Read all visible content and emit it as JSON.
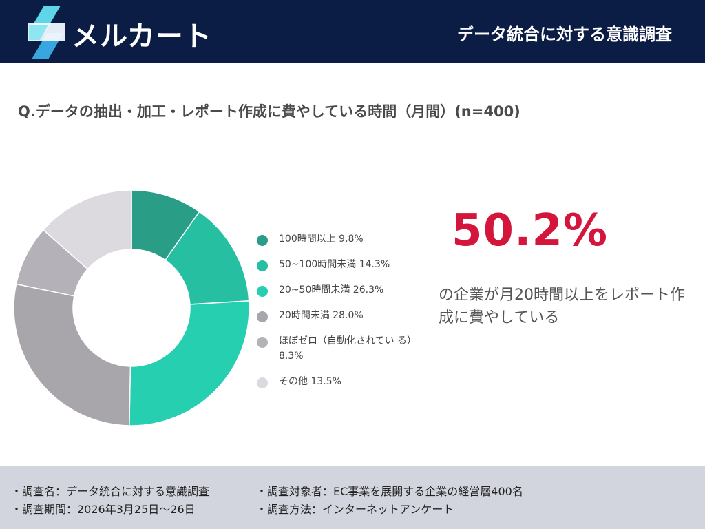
{
  "header": {
    "brand": "メルカート",
    "title": "データ統合に対する意識調査"
  },
  "question": "Q.データの抽出・加工・レポート作成に費やしている時間（月間）(n=400)",
  "chart_data": {
    "type": "pie",
    "variant": "donut",
    "title": "",
    "categories": [
      "100時間以上",
      "50~100時間未満",
      "20~50時間未満",
      "20時間未満",
      "ほぼゼロ（自動化されている）",
      "その他"
    ],
    "values": [
      9.8,
      14.3,
      26.3,
      28.0,
      8.3,
      13.5
    ],
    "unit": "%",
    "colors": [
      "#2a9d87",
      "#27bfa2",
      "#25cfb0",
      "#a9a6ab",
      "#b4b2b8",
      "#dcd9df"
    ],
    "legend_labels": [
      "100時間以上 9.8%",
      "50~100時間未満 14.3%",
      "20~50時間未満 26.3%",
      "20時間未満 28.0%",
      "ほぼゼロ（自動化されてい る）8.3%",
      "その他 13.5%"
    ],
    "legend_position": "right"
  },
  "highlight": {
    "value": "50.2%",
    "text": "の企業が月20時間以上をレポート作成に費やしている",
    "color": "#d4163c"
  },
  "footer": {
    "survey_name": "・調査名：データ統合に対する意識調査",
    "target": "・調査対象者：EC事業を展開する企業の経営層400名",
    "period": "・調査期間：2026年3月25日〜26日",
    "method": "・調査方法：インターネットアンケート"
  }
}
